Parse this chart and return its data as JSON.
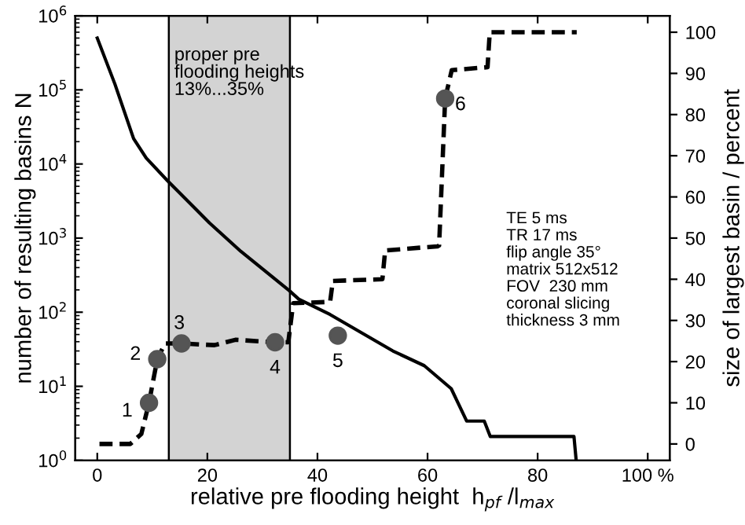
{
  "chart_data": {
    "type": "line",
    "xlabel": "relative pre flooding height  h$_{pf}$ /l$_{max}$",
    "ylabel": "number of resulting basins N",
    "y2label": "size of largest basin / percent",
    "series": [
      {
        "color": "#000000",
        "line_style": "solid",
        "marker": "none",
        "x": [
          0,
          3.2,
          6.6,
          8.9,
          12.8,
          20.4,
          26.1,
          34.9,
          36.6,
          42.3,
          53.7,
          59.4,
          64.3,
          67.1,
          70.3,
          71.4,
          86.6,
          87
        ],
        "values": [
          500000,
          120000,
          22000,
          12000,
          5900,
          1600,
          660,
          195,
          150,
          93,
          30,
          19,
          9.3,
          3.4,
          3.4,
          2.1,
          2.1,
          1
        ]
      },
      {
        "type": "line",
        "axis": "y2",
        "color": "#000000",
        "line_style": "dashed",
        "marker": "none",
        "x": [
          0.4,
          6,
          8,
          9.4,
          10.9,
          12.3,
          15.3,
          21.3,
          25.1,
          32.3,
          34.7,
          35.6,
          42.3,
          42.8,
          51.8,
          52.3,
          61.8,
          62.1,
          63.2,
          64.4,
          70.9,
          71.3,
          87.1
        ],
        "values": [
          0,
          0,
          2.4,
          10,
          20.6,
          24.4,
          24.4,
          24,
          25.3,
          24.7,
          24.7,
          34.2,
          34.5,
          39.6,
          40,
          47,
          48,
          48.2,
          83.9,
          90.8,
          91.5,
          100,
          100
        ]
      },
      {
        "type": "scatter",
        "axis": "y2",
        "color": "#555555",
        "marker": "circle",
        "x": [
          9.4,
          10.9,
          15.3,
          32.3,
          43.7,
          63.2
        ],
        "values": [
          10,
          20.6,
          24.4,
          24.7,
          26.3,
          83.9
        ]
      }
    ],
    "ref_lines": [
      {
        "axis": "x",
        "value": 13,
        "color": "#000000"
      },
      {
        "axis": "x",
        "value": 35,
        "color": "#000000"
      }
    ],
    "bands": [
      {
        "axis": "x",
        "from": 13,
        "to": 35,
        "color": "#d3d3d3",
        "label": "proper pre\nflooding heights\n13%...35%"
      }
    ],
    "annotations": [
      "1",
      "2",
      "3",
      "4",
      "5",
      "6",
      "TE 5 ms\nTR 17 ms\nflip angle 35°\nmatrix 512x512\nFOV  230 mm\ncoronal slicing\nthickness 3 mm"
    ],
    "xlim": [
      -4,
      104
    ],
    "xticks": [
      0,
      20,
      40,
      60,
      80,
      {
        "value": 100,
        "label": "100 %"
      }
    ],
    "log": "y",
    "ylim": [
      1,
      1000000
    ],
    "yticks": [
      {
        "value": 1,
        "label": "10$^{0}$"
      },
      {
        "value": 10,
        "label": "10$^{1}$"
      },
      {
        "value": 100,
        "label": "10$^{2}$"
      },
      {
        "value": 1000,
        "label": "10$^{3}$"
      },
      {
        "value": 10000,
        "label": "10$^{4}$"
      },
      {
        "value": 100000,
        "label": "10$^{5}$"
      },
      {
        "value": 1000000,
        "label": "10$^{6}$"
      }
    ],
    "y2lim": [
      -4,
      104
    ],
    "y2ticks": [
      0,
      10,
      20,
      30,
      40,
      50,
      60,
      70,
      80,
      90,
      100
    ],
    "grid": false,
    "legend": false
  }
}
